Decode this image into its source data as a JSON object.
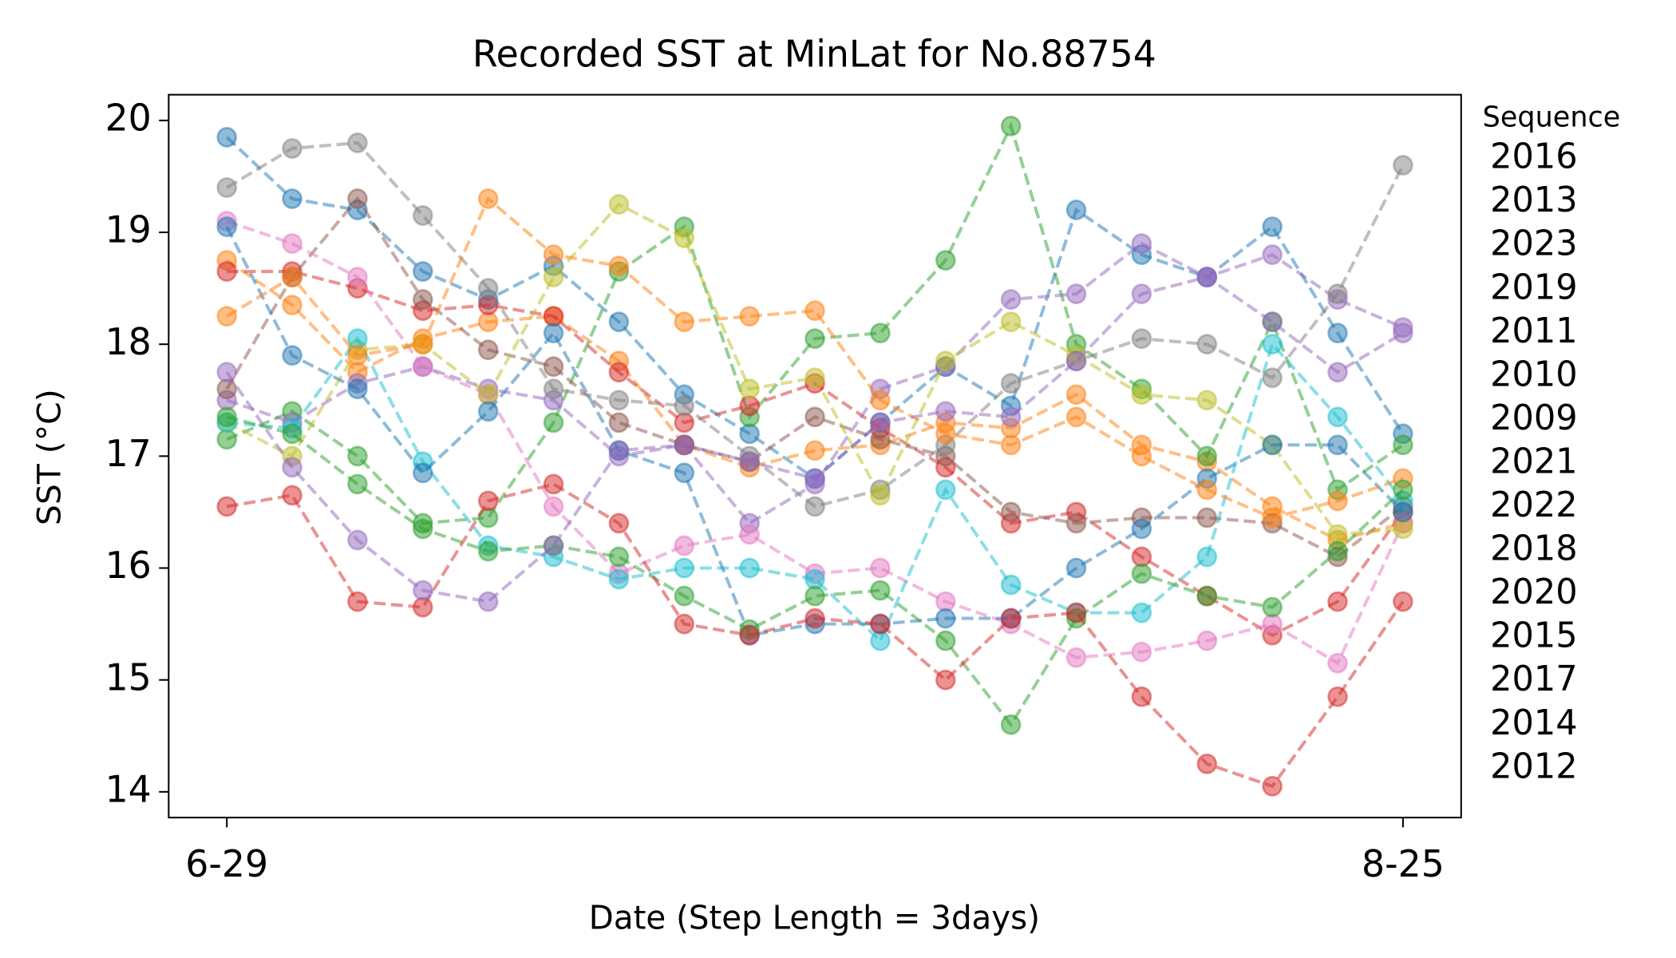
{
  "chart_data": {
    "type": "line",
    "title": "Recorded SST at MinLat for No.88754",
    "x_label": "Date (Step Length = 3days)",
    "y_label": "SST (°C)",
    "legend_title": "Sequence",
    "categories": [
      "6-29",
      null,
      null,
      null,
      null,
      null,
      null,
      null,
      null,
      null,
      null,
      null,
      null,
      null,
      null,
      null,
      null,
      null,
      "8-25"
    ],
    "ylim": [
      13.77,
      20.23
    ],
    "yticks": [
      14,
      15,
      16,
      17,
      18,
      19,
      20
    ],
    "line_style": "dashed",
    "markers": true,
    "series": [
      {
        "name": "2016",
        "color": "#1f77b4",
        "values": [
          19.85,
          19.3,
          19.2,
          18.65,
          18.4,
          18.7,
          18.2,
          17.55,
          17.2,
          16.8,
          17.3,
          17.8,
          17.45,
          19.2,
          18.8,
          18.6,
          19.05,
          18.1,
          17.2
        ]
      },
      {
        "name": "2013",
        "color": "#ff7f0e",
        "values": [
          18.75,
          18.35,
          17.75,
          18.05,
          18.2,
          18.25,
          17.85,
          17.1,
          16.9,
          17.05,
          17.1,
          17.3,
          17.25,
          17.55,
          17.1,
          16.95,
          16.55,
          16.25,
          16.4
        ]
      },
      {
        "name": "2023",
        "color": "#2ca02c",
        "values": [
          17.15,
          17.4,
          17.0,
          16.4,
          16.45,
          17.3,
          18.65,
          19.05,
          17.35,
          18.05,
          18.1,
          18.75,
          19.95,
          18.0,
          17.6,
          17.0,
          18.2,
          16.7,
          17.1
        ]
      },
      {
        "name": "2019",
        "color": "#d62728",
        "values": [
          18.65,
          18.65,
          18.5,
          18.3,
          18.35,
          18.25,
          17.75,
          17.3,
          17.45,
          17.65,
          17.25,
          16.9,
          16.4,
          16.5,
          16.1,
          15.75,
          15.4,
          15.7,
          16.5
        ]
      },
      {
        "name": "2011",
        "color": "#9467bd",
        "values": [
          17.5,
          17.3,
          17.65,
          17.8,
          17.6,
          17.5,
          17.0,
          17.1,
          16.4,
          16.75,
          17.6,
          17.8,
          18.4,
          18.45,
          18.9,
          18.6,
          18.8,
          18.4,
          18.15
        ]
      },
      {
        "name": "2010",
        "color": "#8c564b",
        "values": [
          17.6,
          18.6,
          19.3,
          18.4,
          17.95,
          17.8,
          17.3,
          17.1,
          16.95,
          17.35,
          17.15,
          17.0,
          16.5,
          16.4,
          16.45,
          16.45,
          16.4,
          16.1,
          16.55
        ]
      },
      {
        "name": "2009",
        "color": "#e377c2",
        "values": [
          19.1,
          18.9,
          18.6,
          17.8,
          17.55,
          16.55,
          15.95,
          16.2,
          16.3,
          15.95,
          16.0,
          15.7,
          15.5,
          15.2,
          15.25,
          15.35,
          15.5,
          15.15,
          16.4
        ]
      },
      {
        "name": "2021",
        "color": "#7f7f7f",
        "values": [
          19.4,
          19.75,
          19.8,
          19.15,
          18.5,
          17.6,
          17.5,
          17.45,
          17.0,
          16.55,
          16.7,
          17.1,
          17.65,
          17.85,
          18.05,
          18.0,
          17.7,
          18.45,
          19.6
        ]
      },
      {
        "name": "2022",
        "color": "#bcbd22",
        "values": [
          17.3,
          17.0,
          17.95,
          18.0,
          17.55,
          18.6,
          19.25,
          18.95,
          17.6,
          17.7,
          16.65,
          17.85,
          18.2,
          17.9,
          17.55,
          17.5,
          17.1,
          16.3,
          16.35
        ]
      },
      {
        "name": "2018",
        "color": "#17becf",
        "values": [
          17.3,
          17.25,
          18.05,
          16.95,
          16.2,
          16.1,
          15.9,
          16.0,
          16.0,
          15.9,
          15.35,
          16.7,
          15.85,
          15.6,
          15.6,
          16.1,
          18.0,
          17.35,
          16.6
        ]
      },
      {
        "name": "2020",
        "color": "#1f77b4",
        "values": [
          19.05,
          17.9,
          17.6,
          16.85,
          17.4,
          18.1,
          17.05,
          16.85,
          15.4,
          15.5,
          15.5,
          15.55,
          15.55,
          16.0,
          16.35,
          16.8,
          17.1,
          17.1,
          16.5
        ]
      },
      {
        "name": "2015",
        "color": "#ff7f0e",
        "values": [
          18.25,
          18.6,
          17.9,
          18.0,
          19.3,
          18.8,
          18.7,
          18.2,
          18.25,
          18.3,
          17.5,
          17.2,
          17.1,
          17.35,
          17.0,
          16.7,
          16.45,
          16.6,
          16.8
        ]
      },
      {
        "name": "2017",
        "color": "#2ca02c",
        "values": [
          17.35,
          17.2,
          16.75,
          16.35,
          16.15,
          16.2,
          16.1,
          15.75,
          15.45,
          15.75,
          15.8,
          15.35,
          14.6,
          15.55,
          15.95,
          15.75,
          15.65,
          16.15,
          16.7
        ]
      },
      {
        "name": "2014",
        "color": "#d62728",
        "values": [
          16.55,
          16.65,
          15.7,
          15.65,
          16.6,
          16.75,
          16.4,
          15.5,
          15.4,
          15.55,
          15.5,
          15.0,
          15.55,
          15.6,
          14.85,
          14.25,
          14.05,
          14.85,
          15.7
        ]
      },
      {
        "name": "2012",
        "color": "#9467bd",
        "values": [
          17.75,
          16.9,
          16.25,
          15.8,
          15.7,
          16.2,
          17.05,
          17.1,
          16.95,
          16.8,
          17.3,
          17.4,
          17.35,
          17.85,
          18.45,
          18.6,
          18.2,
          17.75,
          18.1
        ]
      }
    ]
  }
}
